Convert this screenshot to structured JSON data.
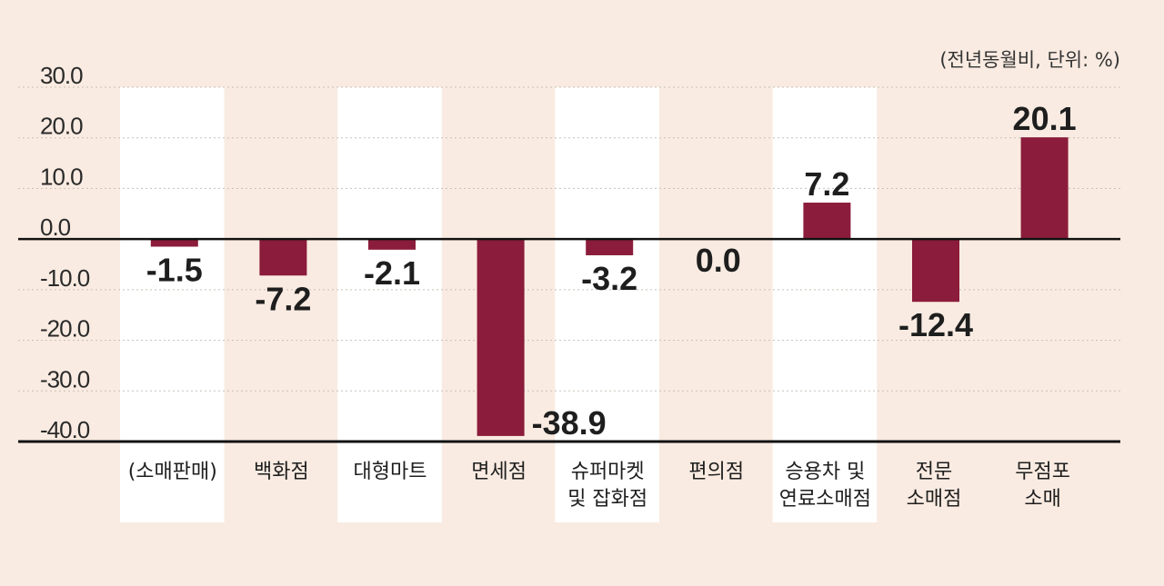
{
  "colors": {
    "background": "#f9ebe1",
    "band": "#ffffff",
    "bar": "#8b1c3b",
    "axis": "#111111",
    "grid": "#c9bfb8"
  },
  "chart_data": {
    "type": "bar",
    "unit_label": "(전년동월비, 단위: %)",
    "categories": [
      [
        "(소매판매)"
      ],
      [
        "백화점"
      ],
      [
        "대형마트"
      ],
      [
        "면세점"
      ],
      [
        "슈퍼마켓",
        "및 잡화점"
      ],
      [
        "편의점"
      ],
      [
        "승용차 및",
        "연료소매점"
      ],
      [
        "전문",
        "소매점"
      ],
      [
        "무점포",
        "소매"
      ]
    ],
    "values": [
      -1.5,
      -7.2,
      -2.1,
      -38.9,
      -3.2,
      0.0,
      7.2,
      -12.4,
      20.1
    ],
    "value_labels": [
      "-1.5",
      "-7.2",
      "-2.1",
      "-38.9",
      "-3.2",
      "0.0",
      "7.2",
      "-12.4",
      "20.1"
    ],
    "highlighted_bands": [
      0,
      2,
      4,
      6
    ],
    "yticks": [
      30,
      20,
      10,
      0,
      -10,
      -20,
      -30,
      -40
    ],
    "ytick_labels": [
      "30.0",
      "20.0",
      "10.0",
      "0.0",
      "-10.0",
      "-20.0",
      "-30.0",
      "-40.0"
    ],
    "ylim": [
      -40,
      30
    ],
    "grid": true,
    "legend": "none"
  }
}
